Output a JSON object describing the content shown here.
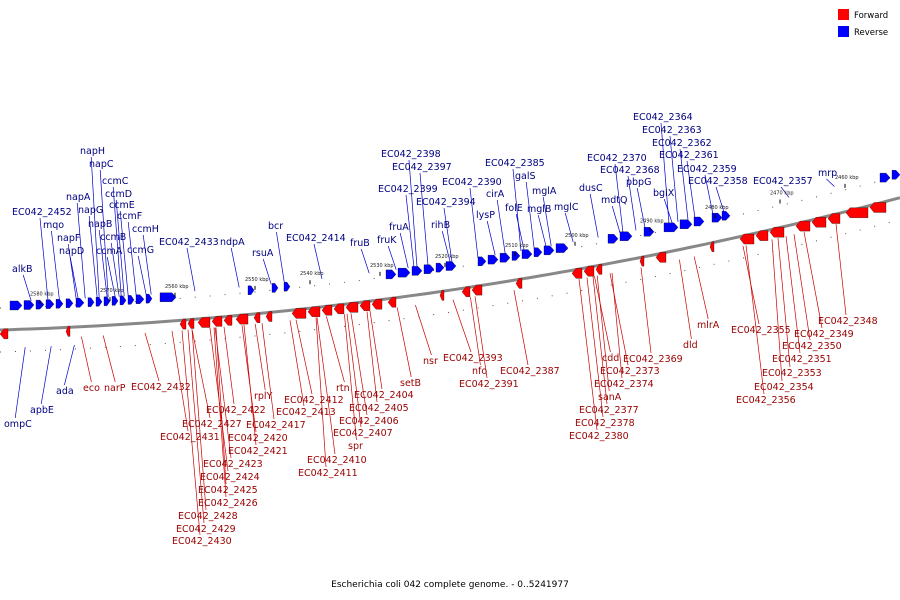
{
  "caption": "Escherichia coli 042 complete genome. - 0..5241977",
  "legend": [
    {
      "label": "Forward",
      "color": "#ff0000"
    },
    {
      "label": "Reverse",
      "color": "#0000ff"
    }
  ],
  "colors": {
    "forward": "#ff0000",
    "reverse": "#0000ff",
    "axis": "#888888"
  },
  "ticks": [
    "2580 kbp",
    "2570 kbp",
    "2560 kbp",
    "2550 kbp",
    "2540 kbp",
    "2530 kbp",
    "2520 kbp",
    "2510 kbp",
    "2500 kbp",
    "2490 kbp",
    "2480 kbp",
    "2470 kbp",
    "2460 kbp"
  ],
  "reverse_genes": [
    "alkB",
    "EC042_2452",
    "mqo",
    "napF",
    "napD",
    "napA",
    "napG",
    "napH",
    "napC",
    "napB",
    "ccmA",
    "ccmB",
    "ccmC",
    "ccmD",
    "ccmE",
    "ccmF",
    "ccmG",
    "ccmH",
    "EC042_2433",
    "ndpA",
    "rsuA",
    "bcr",
    "EC042_2414",
    "fruB",
    "fruK",
    "fruA",
    "EC042_2398",
    "EC042_2397",
    "EC042_2399",
    "EC042_2394",
    "rihB",
    "lysP",
    "EC042_2390",
    "cirA",
    "folE",
    "EC042_2385",
    "galS",
    "mglB",
    "mglA",
    "mglC",
    "dusC",
    "mdtQ",
    "EC042_2370",
    "EC042_2368",
    "pbpG",
    "bglX",
    "EC042_2364",
    "EC042_2363",
    "EC042_2362",
    "EC042_2361",
    "EC042_2359",
    "EC042_2358",
    "EC042_2357",
    "mrp",
    "ompC",
    "apbE",
    "ada"
  ],
  "forward_genes": [
    "eco",
    "narP",
    "EC042_2432",
    "EC042_2431",
    "EC042_2427",
    "EC042_2422",
    "EC042_2421",
    "EC042_2420",
    "EC042_2423",
    "EC042_2424",
    "EC042_2425",
    "EC042_2426",
    "EC042_2428",
    "EC042_2429",
    "EC042_2430",
    "rplY",
    "EC042_2417",
    "EC042_2413",
    "EC042_2412",
    "EC042_2410",
    "EC042_2411",
    "spr",
    "EC042_2407",
    "EC042_2406",
    "rtn",
    "EC042_2405",
    "EC042_2404",
    "setB",
    "nsr",
    "EC042_2393",
    "nfo",
    "EC042_2391",
    "EC042_2387",
    "cdd",
    "EC042_2373",
    "EC042_2374",
    "sanA",
    "EC042_2377",
    "EC042_2378",
    "EC042_2380",
    "EC042_2369",
    "dld",
    "mlrA",
    "EC042_2355",
    "EC042_2356",
    "EC042_2354",
    "EC042_2353",
    "EC042_2351",
    "EC042_2350",
    "EC042_2349",
    "EC042_2348"
  ]
}
